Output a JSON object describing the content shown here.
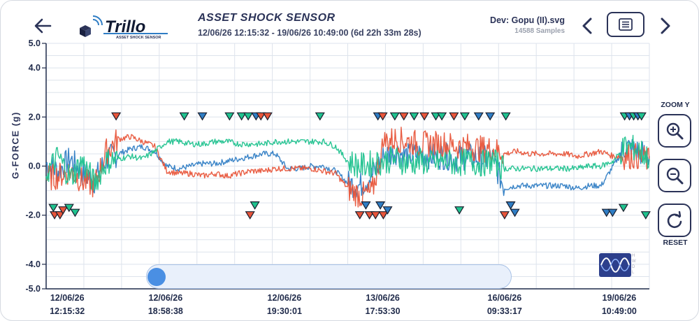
{
  "header": {
    "title": "ASSET SHOCK SENSOR",
    "date_range": "12/06/26 12:15:32 - 19/06/26 10:49:00 (6d 22h 33m 28s)",
    "device": "Dev: Gopu (II).svg",
    "samples": "14588 Samples",
    "logo_text": "Trillo",
    "logo_sub": "ASSET SHOCK SENSOR"
  },
  "controls": {
    "zoom_label": "ZOOM Y",
    "reset_label": "RESET"
  },
  "watermark": {
    "letters": [
      "H",
      "W",
      "D",
      "L"
    ]
  },
  "colors": {
    "axis1": "#2f7dc4",
    "axis2": "#e8553a",
    "axis3": "#1fc28e",
    "grid": "#dde3ec",
    "text": "#1f2a4a"
  },
  "chart_data": {
    "type": "line",
    "title": "",
    "ylabel": "G-FORCE (g)",
    "xlabel": "",
    "ylim": [
      -5.0,
      5.0
    ],
    "yticks": [
      {
        "value": 5.0,
        "label": "5.0"
      },
      {
        "value": 4.0,
        "label": "4.0"
      },
      {
        "value": 2.0,
        "label": "2.0"
      },
      {
        "value": 0.0,
        "label": "0.0"
      },
      {
        "value": -2.0,
        "label": "-2.0"
      },
      {
        "value": -4.0,
        "label": "-4.0"
      },
      {
        "value": -5.0,
        "label": "-5.0"
      }
    ],
    "xlim": [
      0,
      100
    ],
    "xticks": [
      {
        "pos": 3.5,
        "date": "12/06/26",
        "time": "12:15:32"
      },
      {
        "pos": 19.8,
        "date": "12/06/26",
        "time": "18:58:38"
      },
      {
        "pos": 39.5,
        "date": "12/06/26",
        "time": "19:30:01"
      },
      {
        "pos": 55.8,
        "date": "13/06/26",
        "time": "17:53:30"
      },
      {
        "pos": 76.0,
        "date": "16/06/26",
        "time": "09:33:17"
      },
      {
        "pos": 95.0,
        "date": "19/06/26",
        "time": "10:49:00"
      }
    ],
    "grid": true,
    "scroll_position": 0.0,
    "series": [
      {
        "color": "#2f7dc4",
        "x": [
          0,
          2,
          4,
          6,
          8,
          10,
          12,
          14,
          16,
          18,
          20,
          22,
          24,
          26,
          28,
          30,
          32,
          34,
          36,
          38,
          40,
          42,
          44,
          46,
          48,
          50,
          52,
          54,
          56,
          58,
          60,
          62,
          64,
          66,
          68,
          70,
          72,
          74,
          76,
          78,
          80,
          82,
          84,
          86,
          88,
          90,
          92,
          94,
          96,
          98,
          100
        ],
        "y": [
          0.1,
          -0.2,
          0.3,
          -0.3,
          -0.6,
          0.3,
          0.5,
          0.7,
          0.8,
          0.6,
          0.0,
          -0.1,
          0.0,
          0.1,
          0.1,
          0.2,
          0.3,
          0.4,
          0.5,
          0.5,
          -0.1,
          -0.1,
          0.0,
          0.0,
          -0.2,
          -0.7,
          -0.8,
          -0.4,
          0.4,
          0.6,
          0.4,
          0.5,
          0.4,
          0.4,
          0.3,
          0.4,
          0.3,
          0.3,
          -0.9,
          -0.8,
          -0.8,
          -0.8,
          -0.8,
          -0.8,
          -0.9,
          -0.8,
          -0.8,
          0.0,
          0.8,
          0.6,
          0.4
        ]
      },
      {
        "color": "#e8553a",
        "x": [
          0,
          2,
          4,
          6,
          8,
          10,
          12,
          14,
          16,
          18,
          20,
          22,
          24,
          26,
          28,
          30,
          32,
          34,
          36,
          38,
          40,
          42,
          44,
          46,
          48,
          50,
          52,
          54,
          56,
          58,
          60,
          62,
          64,
          66,
          68,
          70,
          72,
          74,
          76,
          78,
          80,
          82,
          84,
          86,
          88,
          90,
          92,
          94,
          96,
          98,
          100
        ],
        "y": [
          -0.5,
          -0.4,
          -0.2,
          -0.6,
          -0.8,
          0.6,
          1.1,
          1.2,
          1.0,
          0.8,
          -0.2,
          -0.3,
          -0.3,
          -0.4,
          -0.3,
          -0.4,
          -0.3,
          -0.2,
          -0.2,
          -0.1,
          -0.1,
          -0.1,
          -0.1,
          -0.2,
          -0.3,
          -0.9,
          -1.2,
          -1.1,
          1.0,
          1.1,
          1.0,
          0.9,
          0.9,
          0.9,
          0.8,
          0.8,
          0.7,
          0.7,
          0.5,
          0.6,
          0.5,
          0.5,
          0.5,
          0.5,
          0.4,
          0.5,
          0.6,
          0.4,
          0.4,
          0.4,
          0.2
        ]
      },
      {
        "color": "#1fc28e",
        "x": [
          0,
          2,
          4,
          6,
          8,
          10,
          12,
          14,
          16,
          18,
          20,
          22,
          24,
          26,
          28,
          30,
          32,
          34,
          36,
          38,
          40,
          42,
          44,
          46,
          48,
          50,
          52,
          54,
          56,
          58,
          60,
          62,
          64,
          66,
          68,
          70,
          72,
          74,
          76,
          78,
          80,
          82,
          84,
          86,
          88,
          90,
          92,
          94,
          96,
          98,
          100
        ],
        "y": [
          -0.3,
          0.4,
          -0.5,
          0.2,
          -0.7,
          0.2,
          0.3,
          0.4,
          0.3,
          0.6,
          1.0,
          1.0,
          0.9,
          0.9,
          1.0,
          1.0,
          0.9,
          0.9,
          0.9,
          1.0,
          1.0,
          1.0,
          1.0,
          1.0,
          0.8,
          0.2,
          0.0,
          0.1,
          0.2,
          0.3,
          0.1,
          0.2,
          0.1,
          0.2,
          0.1,
          0.2,
          0.1,
          0.2,
          -0.1,
          -0.1,
          -0.1,
          -0.1,
          -0.1,
          -0.1,
          -0.1,
          0.0,
          0.0,
          0.2,
          0.8,
          0.7,
          0.3
        ]
      }
    ],
    "markers_top": [
      {
        "x": 11.6,
        "color": "#e8553a"
      },
      {
        "x": 22.9,
        "color": "#1fc28e"
      },
      {
        "x": 25.9,
        "color": "#2f7dc4"
      },
      {
        "x": 30.4,
        "color": "#1fc28e"
      },
      {
        "x": 32.4,
        "color": "#1fc28e"
      },
      {
        "x": 33.5,
        "color": "#1fc28e"
      },
      {
        "x": 34.8,
        "color": "#2f7dc4"
      },
      {
        "x": 35.6,
        "color": "#e8553a"
      },
      {
        "x": 36.7,
        "color": "#e8553a"
      },
      {
        "x": 45.4,
        "color": "#1fc28e"
      },
      {
        "x": 55.0,
        "color": "#2f7dc4"
      },
      {
        "x": 55.8,
        "color": "#e8553a"
      },
      {
        "x": 57.8,
        "color": "#1fc28e"
      },
      {
        "x": 59.3,
        "color": "#e8553a"
      },
      {
        "x": 61.0,
        "color": "#1fc28e"
      },
      {
        "x": 62.7,
        "color": "#e8553a"
      },
      {
        "x": 64.6,
        "color": "#1fc28e"
      },
      {
        "x": 65.6,
        "color": "#1fc28e"
      },
      {
        "x": 67.6,
        "color": "#e8553a"
      },
      {
        "x": 69.4,
        "color": "#1fc28e"
      },
      {
        "x": 71.7,
        "color": "#2f7dc4"
      },
      {
        "x": 73.6,
        "color": "#2f7dc4"
      },
      {
        "x": 76.2,
        "color": "#1fc28e"
      },
      {
        "x": 95.9,
        "color": "#1fc28e"
      },
      {
        "x": 96.7,
        "color": "#2f7dc4"
      },
      {
        "x": 97.4,
        "color": "#1fc28e"
      },
      {
        "x": 98.1,
        "color": "#2f7dc4"
      },
      {
        "x": 98.7,
        "color": "#1fc28e"
      }
    ],
    "markers_bottom": [
      {
        "x": 1.2,
        "y": -1.7,
        "color": "#1fc28e"
      },
      {
        "x": 1.4,
        "y": -2.0,
        "color": "#e8553a"
      },
      {
        "x": 2.3,
        "y": -2.0,
        "color": "#e8553a"
      },
      {
        "x": 2.8,
        "y": -1.8,
        "color": "#e8553a"
      },
      {
        "x": 3.8,
        "y": -1.7,
        "color": "#1fc28e"
      },
      {
        "x": 4.8,
        "y": -1.9,
        "color": "#1fc28e"
      },
      {
        "x": 33.8,
        "y": -2.0,
        "color": "#e8553a"
      },
      {
        "x": 34.6,
        "y": -1.6,
        "color": "#1fc28e"
      },
      {
        "x": 52.0,
        "y": -2.0,
        "color": "#e8553a"
      },
      {
        "x": 53.0,
        "y": -1.6,
        "color": "#2f7dc4"
      },
      {
        "x": 53.6,
        "y": -2.0,
        "color": "#e8553a"
      },
      {
        "x": 54.6,
        "y": -2.0,
        "color": "#e8553a"
      },
      {
        "x": 55.4,
        "y": -1.6,
        "color": "#2f7dc4"
      },
      {
        "x": 55.9,
        "y": -2.0,
        "color": "#e8553a"
      },
      {
        "x": 56.6,
        "y": -1.8,
        "color": "#2f7dc4"
      },
      {
        "x": 68.5,
        "y": -1.8,
        "color": "#1fc28e"
      },
      {
        "x": 76.0,
        "y": -2.0,
        "color": "#e8553a"
      },
      {
        "x": 77.0,
        "y": -1.6,
        "color": "#2f7dc4"
      },
      {
        "x": 77.7,
        "y": -1.9,
        "color": "#2f7dc4"
      },
      {
        "x": 92.9,
        "y": -1.9,
        "color": "#2f7dc4"
      },
      {
        "x": 93.9,
        "y": -1.9,
        "color": "#2f7dc4"
      },
      {
        "x": 95.7,
        "y": -1.7,
        "color": "#1fc28e"
      },
      {
        "x": 99.4,
        "y": -2.0,
        "color": "#1fc28e"
      }
    ]
  }
}
